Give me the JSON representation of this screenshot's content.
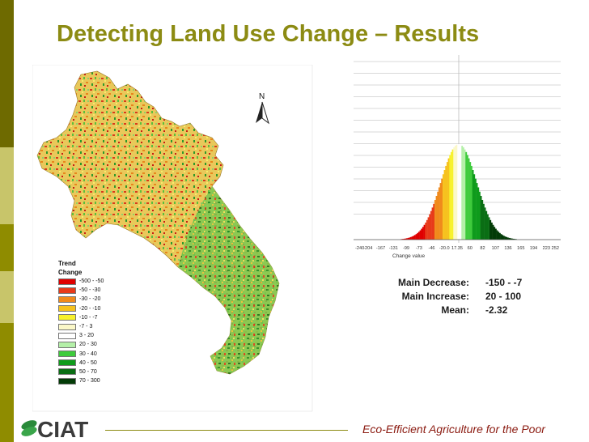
{
  "slide": {
    "title": "Detecting Land Use Change – Results",
    "footer": "Eco-Efficient Agriculture for the Poor",
    "logo_text": "CIAT"
  },
  "colors": {
    "accent": "#8c8b13",
    "footer_text": "#8b1a10",
    "sidebar": [
      "#6e6a00",
      "#c8c56a",
      "#8f8c00",
      "#c8c56a",
      "#8f8c00"
    ]
  },
  "map": {
    "north_label": "N",
    "legend": {
      "title_line1": "Trend",
      "title_line2": "Change",
      "items": [
        {
          "label": "-500 - -50",
          "color": "#e00000"
        },
        {
          "label": "-50 - -30",
          "color": "#e83a1a"
        },
        {
          "label": "-30 - -20",
          "color": "#f08a1c"
        },
        {
          "label": "-20 - -10",
          "color": "#f6c21e"
        },
        {
          "label": "-10 - -7",
          "color": "#f7f12c"
        },
        {
          "label": "-7 - 3",
          "color": "#fbf8c8"
        },
        {
          "label": "3 - 20",
          "color": "#ffffff"
        },
        {
          "label": "20 - 30",
          "color": "#b4f0a8"
        },
        {
          "label": "30 - 40",
          "color": "#3ecb3c"
        },
        {
          "label": "40 - 50",
          "color": "#0f9b1c"
        },
        {
          "label": "50 - 70",
          "color": "#0a6e14"
        },
        {
          "label": "70 - 300",
          "color": "#033b07"
        }
      ]
    }
  },
  "histogram": {
    "x_ticks": [
      "-240",
      "-204",
      "-167",
      "-131",
      "-99",
      "-73",
      "-46",
      "-20.0",
      "17.35",
      "60",
      "82",
      "107",
      "136",
      "165",
      "194",
      "223",
      "252"
    ],
    "xlabel": "Change value"
  },
  "stats": [
    {
      "label": "Main Decrease:",
      "value": "-150 - -7"
    },
    {
      "label": "Main Increase:",
      "value": "20 - 100"
    },
    {
      "label": "Mean:",
      "value": "-2.32"
    }
  ]
}
